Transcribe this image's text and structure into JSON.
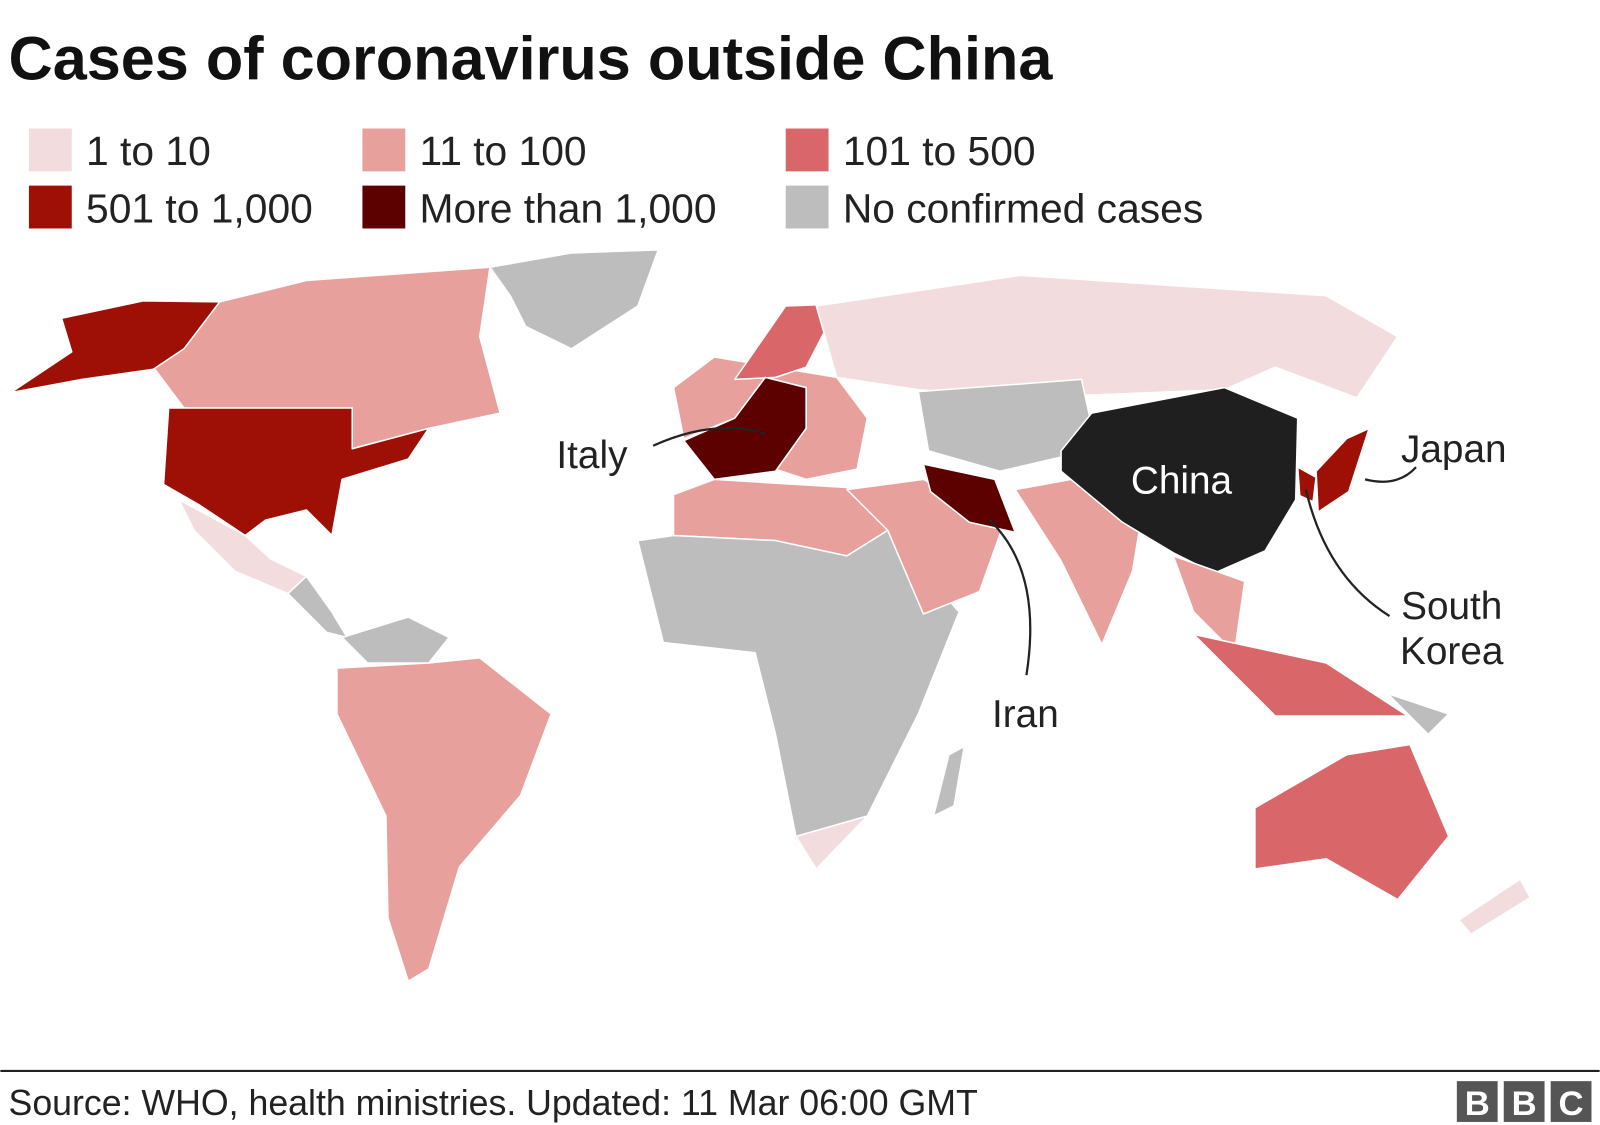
{
  "header": {
    "title": "Cases of coronavirus outside China"
  },
  "legend": {
    "items": [
      {
        "label": "1 to 10",
        "color": "#f2dcdd"
      },
      {
        "label": "11 to 100",
        "color": "#e8a09c"
      },
      {
        "label": "101 to 500",
        "color": "#d9676a"
      },
      {
        "label": "501 to 1,000",
        "color": "#9e1006"
      },
      {
        "label": "More than 1,000",
        "color": "#5c0000"
      },
      {
        "label": "No confirmed cases",
        "color": "#bdbdbd"
      }
    ]
  },
  "map": {
    "labels": {
      "italy": "Italy",
      "china": "China",
      "japan": "Japan",
      "south_korea": [
        "South",
        "Korea"
      ],
      "iran": "Iran"
    }
  },
  "footer": {
    "source": "Source: WHO, health ministries. Updated: 11 Mar 06:00 GMT",
    "logo": [
      "B",
      "B",
      "C"
    ]
  }
}
